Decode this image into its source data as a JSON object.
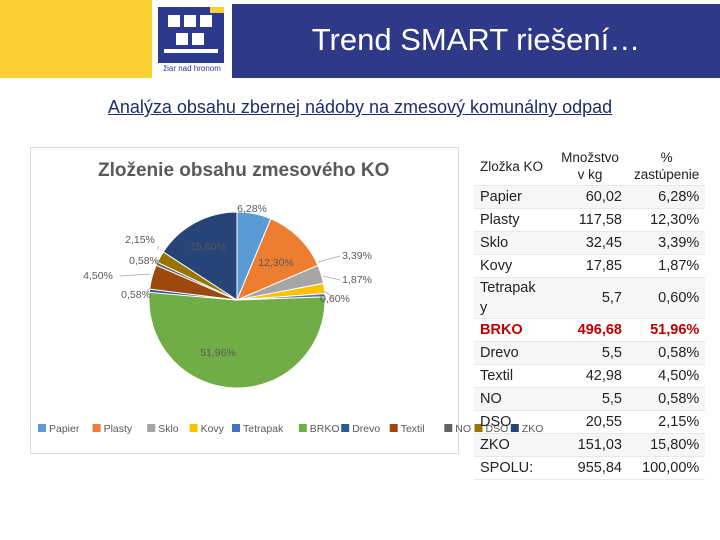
{
  "header": {
    "title": "Trend SMART riešení…",
    "logo_text": "žiar nad hronom"
  },
  "subtitle": "Analýza obsahu zbernej nádoby na zmesový komunálny odpad",
  "table": {
    "headers": [
      "Zložka KO",
      "Množstvo v kg",
      "% zastúpenie"
    ],
    "rows": [
      [
        "Papier",
        "60,02",
        "6,28%"
      ],
      [
        "Plasty",
        "117,58",
        "12,30%"
      ],
      [
        "Sklo",
        "32,45",
        "3,39%"
      ],
      [
        "Kovy",
        "17,85",
        "1,87%"
      ],
      [
        "Tetrapak y",
        "5,7",
        "0,60%"
      ],
      [
        "BRKO",
        "496,68",
        "51,96%"
      ],
      [
        "Drevo",
        "5,5",
        "0,58%"
      ],
      [
        "Textil",
        "42,98",
        "4,50%"
      ],
      [
        "NO",
        "5,5",
        "0,58%"
      ],
      [
        "DSO",
        "20,55",
        "2,15%"
      ],
      [
        "ZKO",
        "151,03",
        "15,80%"
      ],
      [
        "SPOLU:",
        "955,84",
        "100,00%"
      ]
    ]
  },
  "chart_data": {
    "type": "pie",
    "title": "Zloženie obsahu zmesového KO",
    "legend_position": "bottom",
    "slices": [
      {
        "name": "Papier",
        "value": 6.28,
        "label": "6,28%",
        "color": "#5b9bd5"
      },
      {
        "name": "Plasty",
        "value": 12.3,
        "label": "12,30%",
        "color": "#ed7d31"
      },
      {
        "name": "Sklo",
        "value": 3.39,
        "label": "3,39%",
        "color": "#a5a5a5"
      },
      {
        "name": "Kovy",
        "value": 1.87,
        "label": "1,87%",
        "color": "#ffc000"
      },
      {
        "name": "Tetrapak",
        "value": 0.6,
        "label": "0,60%",
        "color": "#4472c4"
      },
      {
        "name": "BRKO",
        "value": 51.96,
        "label": "51,96%",
        "color": "#70ad47"
      },
      {
        "name": "Drevo",
        "value": 0.58,
        "label": "0,58%",
        "color": "#255e91"
      },
      {
        "name": "Textil",
        "value": 4.5,
        "label": "4,50%",
        "color": "#9e480e"
      },
      {
        "name": "NO",
        "value": 0.58,
        "label": "0,58%",
        "color": "#636363"
      },
      {
        "name": "DSO",
        "value": 2.15,
        "label": "2,15%",
        "color": "#997300"
      },
      {
        "name": "ZKO",
        "value": 15.8,
        "label": "15,80%",
        "color": "#264478"
      }
    ]
  }
}
